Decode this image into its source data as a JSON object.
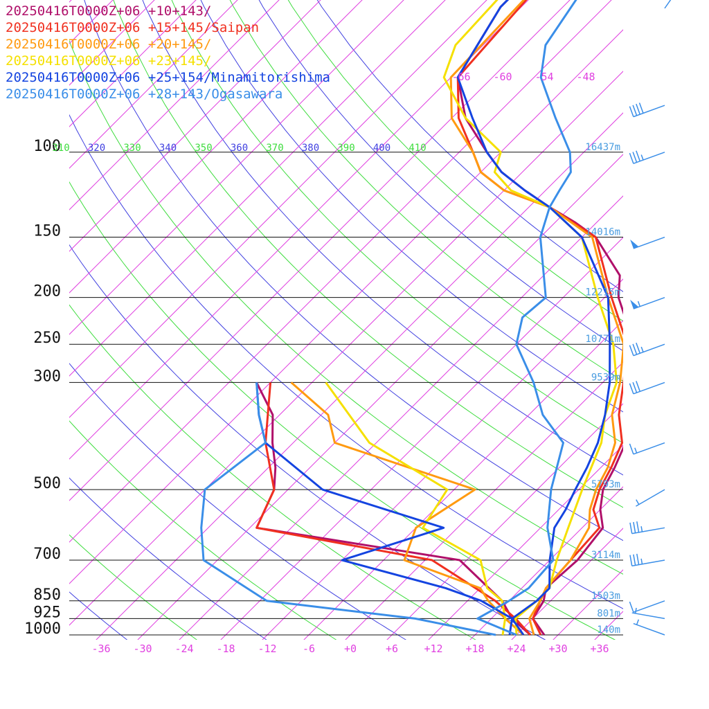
{
  "chart_data": {
    "type": "line",
    "chart_kind": "skew-T log-P",
    "x_tick_labels": [
      "-36",
      "-30",
      "-24",
      "-18",
      "-12",
      "-6",
      "+0",
      "+6",
      "+12",
      "+18",
      "+24",
      "+30",
      "+36"
    ],
    "x_ticks": [
      -36,
      -30,
      -24,
      -18,
      -12,
      -6,
      0,
      6,
      12,
      18,
      24,
      30,
      36
    ],
    "pressure_levels": [
      {
        "p": 100,
        "label": "100",
        "height": "16437m"
      },
      {
        "p": 150,
        "label": "150",
        "height": "14016m"
      },
      {
        "p": 200,
        "label": "200",
        "height": "12215m"
      },
      {
        "p": 250,
        "label": "250",
        "height": "10771m"
      },
      {
        "p": 300,
        "label": "300",
        "height": "9539m"
      },
      {
        "p": 500,
        "label": "500",
        "height": "5793m"
      },
      {
        "p": 700,
        "label": "700",
        "height": "3114m"
      },
      {
        "p": 850,
        "label": "850",
        "height": "1503m"
      },
      {
        "p": 925,
        "label": "925",
        "height": "801m"
      },
      {
        "p": 1000,
        "label": "1000",
        "height": "140m"
      }
    ],
    "upper_temp_labels": [
      "-66",
      "-60",
      "-54",
      "-48"
    ],
    "theta_labels": [
      {
        "text": "310",
        "color": "#3ddc3d"
      },
      {
        "text": "320",
        "color": "#4040e0"
      },
      {
        "text": "330",
        "color": "#3ddc3d"
      },
      {
        "text": "340",
        "color": "#4040e0"
      },
      {
        "text": "350",
        "color": "#3ddc3d"
      },
      {
        "text": "360",
        "color": "#4040e0"
      },
      {
        "text": "370",
        "color": "#3ddc3d"
      },
      {
        "text": "380",
        "color": "#4040e0"
      },
      {
        "text": "390",
        "color": "#3ddc3d"
      },
      {
        "text": "400",
        "color": "#4040e0"
      },
      {
        "text": "410",
        "color": "#3ddc3d"
      }
    ],
    "series": [
      {
        "name": "20250416T0000Z+06 +10+143/",
        "color": "#b0106a",
        "temperature": [
          [
            1000,
            28
          ],
          [
            925,
            24
          ],
          [
            850,
            23
          ],
          [
            800,
            21.5
          ],
          [
            700,
            22
          ],
          [
            600,
            21
          ],
          [
            550,
            18
          ],
          [
            500,
            15.5
          ],
          [
            450,
            14
          ],
          [
            400,
            12
          ],
          [
            350,
            8
          ],
          [
            300,
            4
          ],
          [
            250,
            -1
          ],
          [
            200,
            -10
          ],
          [
            180,
            -13
          ],
          [
            150,
            -22
          ],
          [
            140,
            -27
          ],
          [
            130,
            -33
          ],
          [
            120,
            -39
          ],
          [
            110,
            -45
          ],
          [
            100,
            -50
          ],
          [
            85,
            -58
          ],
          [
            70,
            -65
          ],
          [
            50,
            -69
          ],
          [
            40,
            -69
          ],
          [
            35,
            -67
          ]
        ],
        "dewpoint": [
          [
            1000,
            26
          ],
          [
            925,
            21
          ],
          [
            850,
            17
          ],
          [
            700,
            5
          ],
          [
            600,
            -29
          ],
          [
            500,
            -32
          ],
          [
            450,
            -35
          ],
          [
            400,
            -39
          ],
          [
            350,
            -43
          ],
          [
            300,
            -50
          ]
        ]
      },
      {
        "name": "20250416T0000Z+06 +15+145/Saipan",
        "color": "#f03020",
        "temperature": [
          [
            1000,
            27.5
          ],
          [
            925,
            24
          ],
          [
            850,
            22.5
          ],
          [
            800,
            21.5
          ],
          [
            700,
            21
          ],
          [
            600,
            20.5
          ],
          [
            550,
            17
          ],
          [
            500,
            15
          ],
          [
            450,
            13.5
          ],
          [
            400,
            11.5
          ],
          [
            350,
            7
          ],
          [
            300,
            3
          ],
          [
            250,
            -2
          ],
          [
            200,
            -11
          ],
          [
            150,
            -22
          ],
          [
            130,
            -33
          ],
          [
            120,
            -42
          ],
          [
            110,
            -48
          ],
          [
            100,
            -52
          ],
          [
            85,
            -59
          ],
          [
            70,
            -65
          ],
          [
            40,
            -67
          ]
        ],
        "dewpoint": [
          [
            1000,
            26
          ],
          [
            925,
            21.5
          ],
          [
            850,
            16
          ],
          [
            700,
            1
          ],
          [
            600,
            -29
          ],
          [
            500,
            -32
          ],
          [
            400,
            -40
          ],
          [
            300,
            -48
          ]
        ]
      },
      {
        "name": "20250416T0000Z+06 +20+145/",
        "color": "#ff9a10",
        "temperature": [
          [
            1000,
            26.5
          ],
          [
            925,
            23.5
          ],
          [
            850,
            22.5
          ],
          [
            800,
            21.5
          ],
          [
            700,
            21
          ],
          [
            600,
            19
          ],
          [
            550,
            16.5
          ],
          [
            500,
            14.5
          ],
          [
            450,
            13
          ],
          [
            400,
            10.5
          ],
          [
            350,
            6
          ],
          [
            300,
            2.5
          ],
          [
            250,
            -2.5
          ],
          [
            200,
            -11.5
          ],
          [
            150,
            -22.5
          ],
          [
            130,
            -33
          ],
          [
            120,
            -42
          ],
          [
            110,
            -48
          ],
          [
            100,
            -52
          ],
          [
            85,
            -60
          ],
          [
            70,
            -66
          ],
          [
            40,
            -67
          ]
        ],
        "dewpoint": [
          [
            1000,
            25
          ],
          [
            925,
            20
          ],
          [
            850,
            15
          ],
          [
            800,
            12
          ],
          [
            700,
            -3
          ],
          [
            600,
            -6
          ],
          [
            500,
            -3
          ],
          [
            400,
            -30
          ],
          [
            350,
            -35
          ],
          [
            300,
            -45
          ]
        ]
      },
      {
        "name": "20250416T0000Z+06 +23+145/",
        "color": "#f5e000",
        "temperature": [
          [
            1000,
            24
          ],
          [
            925,
            21.5
          ],
          [
            850,
            22
          ],
          [
            800,
            22
          ],
          [
            700,
            19
          ],
          [
            600,
            16
          ],
          [
            500,
            12.5
          ],
          [
            400,
            8.5
          ],
          [
            350,
            5
          ],
          [
            300,
            2
          ],
          [
            250,
            -4
          ],
          [
            200,
            -13
          ],
          [
            150,
            -24
          ],
          [
            130,
            -33
          ],
          [
            120,
            -41
          ],
          [
            110,
            -46
          ],
          [
            100,
            -48
          ],
          [
            85,
            -58
          ],
          [
            70,
            -67
          ],
          [
            60,
            -70
          ],
          [
            40,
            -71
          ]
        ],
        "dewpoint": [
          [
            1000,
            22
          ],
          [
            925,
            20
          ],
          [
            850,
            17
          ],
          [
            800,
            13
          ],
          [
            700,
            8
          ],
          [
            600,
            -5
          ],
          [
            500,
            -7
          ],
          [
            400,
            -25
          ],
          [
            300,
            -40
          ]
        ]
      },
      {
        "name": "20250416T0000Z+06 +25+154/Minamitorishima",
        "color": "#1444e0",
        "temperature": [
          [
            1000,
            25
          ],
          [
            925,
            21
          ],
          [
            850,
            22
          ],
          [
            800,
            22
          ],
          [
            700,
            18
          ],
          [
            600,
            14
          ],
          [
            550,
            13
          ],
          [
            500,
            11.5
          ],
          [
            450,
            10
          ],
          [
            400,
            8
          ],
          [
            350,
            5
          ],
          [
            300,
            1
          ],
          [
            250,
            -4.5
          ],
          [
            200,
            -11.5
          ],
          [
            150,
            -24
          ],
          [
            130,
            -33
          ],
          [
            120,
            -39
          ],
          [
            110,
            -45
          ],
          [
            100,
            -50
          ],
          [
            85,
            -57
          ],
          [
            70,
            -65
          ],
          [
            50,
            -69
          ],
          [
            40,
            -69
          ]
        ],
        "dewpoint": [
          [
            1000,
            23
          ],
          [
            925,
            21
          ],
          [
            850,
            14
          ],
          [
            800,
            7
          ],
          [
            700,
            -12
          ],
          [
            600,
            -2
          ],
          [
            500,
            -25
          ],
          [
            400,
            -40
          ],
          [
            350,
            -45
          ],
          [
            300,
            -50
          ]
        ]
      },
      {
        "name": "20250416T0000Z+06 +28+143/Ogasawara",
        "color": "#3a8ee8",
        "temperature": [
          [
            1000,
            24
          ],
          [
            925,
            16
          ],
          [
            850,
            18
          ],
          [
            800,
            19
          ],
          [
            700,
            18.5
          ],
          [
            600,
            13
          ],
          [
            500,
            8
          ],
          [
            400,
            3
          ],
          [
            350,
            -4
          ],
          [
            300,
            -10
          ],
          [
            250,
            -18
          ],
          [
            220,
            -21
          ],
          [
            200,
            -20.5
          ],
          [
            150,
            -30
          ],
          [
            130,
            -33
          ],
          [
            120,
            -34
          ],
          [
            110,
            -35
          ],
          [
            100,
            -38
          ],
          [
            85,
            -45
          ],
          [
            70,
            -53
          ],
          [
            60,
            -57
          ],
          [
            40,
            -61
          ]
        ],
        "dewpoint": [
          [
            1000,
            21
          ],
          [
            925,
            7
          ],
          [
            850,
            -17
          ],
          [
            700,
            -32
          ],
          [
            600,
            -37
          ],
          [
            500,
            -42
          ],
          [
            400,
            -40
          ],
          [
            350,
            -45
          ],
          [
            300,
            -50
          ]
        ]
      }
    ],
    "wind_barbs": [
      {
        "p": 35,
        "dir": 215,
        "speed": 5
      },
      {
        "p": 80,
        "dir": 70,
        "speed": 40
      },
      {
        "p": 100,
        "dir": 70,
        "speed": 35
      },
      {
        "p": 150,
        "dir": 70,
        "speed": 50
      },
      {
        "p": 200,
        "dir": 70,
        "speed": 55
      },
      {
        "p": 250,
        "dir": 70,
        "speed": 35
      },
      {
        "p": 300,
        "dir": 70,
        "speed": 30
      },
      {
        "p": 400,
        "dir": 70,
        "speed": 15
      },
      {
        "p": 500,
        "dir": 60,
        "speed": 5
      },
      {
        "p": 600,
        "dir": 80,
        "speed": 35
      },
      {
        "p": 700,
        "dir": 80,
        "speed": 35
      },
      {
        "p": 850,
        "dir": 70,
        "speed": 10
      },
      {
        "p": 925,
        "dir": 100,
        "speed": 5
      },
      {
        "p": 1000,
        "dir": 110,
        "speed": 5
      }
    ]
  }
}
